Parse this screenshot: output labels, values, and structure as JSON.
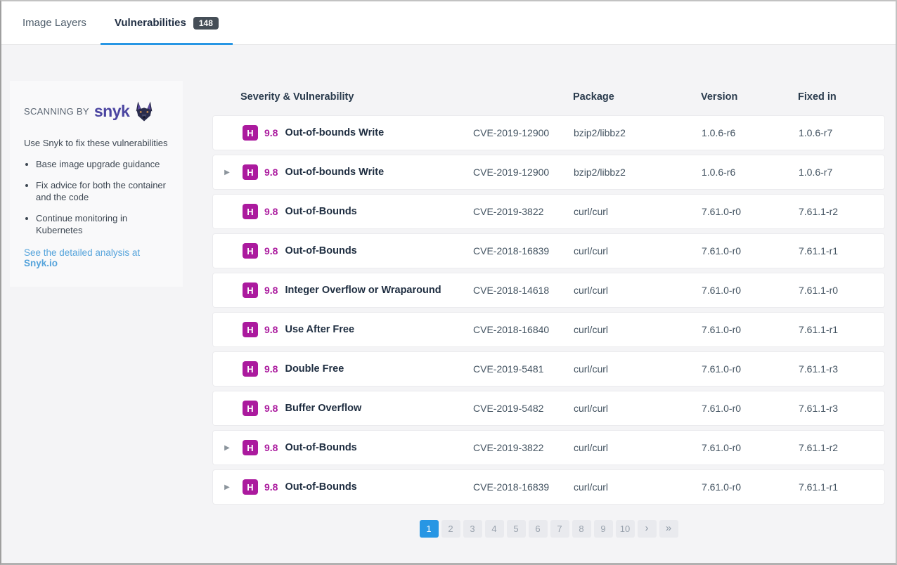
{
  "tabs": {
    "image_layers": "Image Layers",
    "vulnerabilities": "Vulnerabilities",
    "vulnerabilities_count": "148"
  },
  "sidebar": {
    "scanning_by": "SCANNING BY",
    "brand": "snyk",
    "brand_icon": "doberman-dog-icon",
    "intro": "Use Snyk to fix these vulnerabilities",
    "bullets": [
      "Base image upgrade guidance",
      "Fix advice for both the container and the code",
      "Continue monitoring in Kubernetes"
    ],
    "link_prefix": "See the detailed analysis at ",
    "link_bold": "Snyk.io"
  },
  "table": {
    "headers": {
      "severity": "Severity & Vulnerability",
      "package": "Package",
      "version": "Version",
      "fixed_in": "Fixed in"
    },
    "rows": [
      {
        "expandable": false,
        "severity": "H",
        "score": "9.8",
        "name": "Out-of-bounds Write",
        "cve": "CVE-2019-12900",
        "package": "bzip2/libbz2",
        "version": "1.0.6-r6",
        "fixed_in": "1.0.6-r7"
      },
      {
        "expandable": true,
        "severity": "H",
        "score": "9.8",
        "name": "Out-of-bounds Write",
        "cve": "CVE-2019-12900",
        "package": "bzip2/libbz2",
        "version": "1.0.6-r6",
        "fixed_in": "1.0.6-r7"
      },
      {
        "expandable": false,
        "severity": "H",
        "score": "9.8",
        "name": "Out-of-Bounds",
        "cve": "CVE-2019-3822",
        "package": "curl/curl",
        "version": "7.61.0-r0",
        "fixed_in": "7.61.1-r2"
      },
      {
        "expandable": false,
        "severity": "H",
        "score": "9.8",
        "name": "Out-of-Bounds",
        "cve": "CVE-2018-16839",
        "package": "curl/curl",
        "version": "7.61.0-r0",
        "fixed_in": "7.61.1-r1"
      },
      {
        "expandable": false,
        "severity": "H",
        "score": "9.8",
        "name": "Integer Overflow or Wraparound",
        "cve": "CVE-2018-14618",
        "package": "curl/curl",
        "version": "7.61.0-r0",
        "fixed_in": "7.61.1-r0"
      },
      {
        "expandable": false,
        "severity": "H",
        "score": "9.8",
        "name": "Use After Free",
        "cve": "CVE-2018-16840",
        "package": "curl/curl",
        "version": "7.61.0-r0",
        "fixed_in": "7.61.1-r1"
      },
      {
        "expandable": false,
        "severity": "H",
        "score": "9.8",
        "name": "Double Free",
        "cve": "CVE-2019-5481",
        "package": "curl/curl",
        "version": "7.61.0-r0",
        "fixed_in": "7.61.1-r3"
      },
      {
        "expandable": false,
        "severity": "H",
        "score": "9.8",
        "name": "Buffer Overflow",
        "cve": "CVE-2019-5482",
        "package": "curl/curl",
        "version": "7.61.0-r0",
        "fixed_in": "7.61.1-r3"
      },
      {
        "expandable": true,
        "severity": "H",
        "score": "9.8",
        "name": "Out-of-Bounds",
        "cve": "CVE-2019-3822",
        "package": "curl/curl",
        "version": "7.61.0-r0",
        "fixed_in": "7.61.1-r2"
      },
      {
        "expandable": true,
        "severity": "H",
        "score": "9.8",
        "name": "Out-of-Bounds",
        "cve": "CVE-2018-16839",
        "package": "curl/curl",
        "version": "7.61.0-r0",
        "fixed_in": "7.61.1-r1"
      }
    ]
  },
  "pagination": {
    "pages": [
      "1",
      "2",
      "3",
      "4",
      "5",
      "6",
      "7",
      "8",
      "9",
      "10"
    ],
    "active_page": "1",
    "next_label": "›",
    "last_label": "»"
  },
  "colors": {
    "accent_blue": "#2796e4",
    "severity_high": "#ab1a9e",
    "brand_purple": "#4b45a1",
    "link_blue": "#56a4db",
    "count_badge_bg": "#454e57"
  }
}
